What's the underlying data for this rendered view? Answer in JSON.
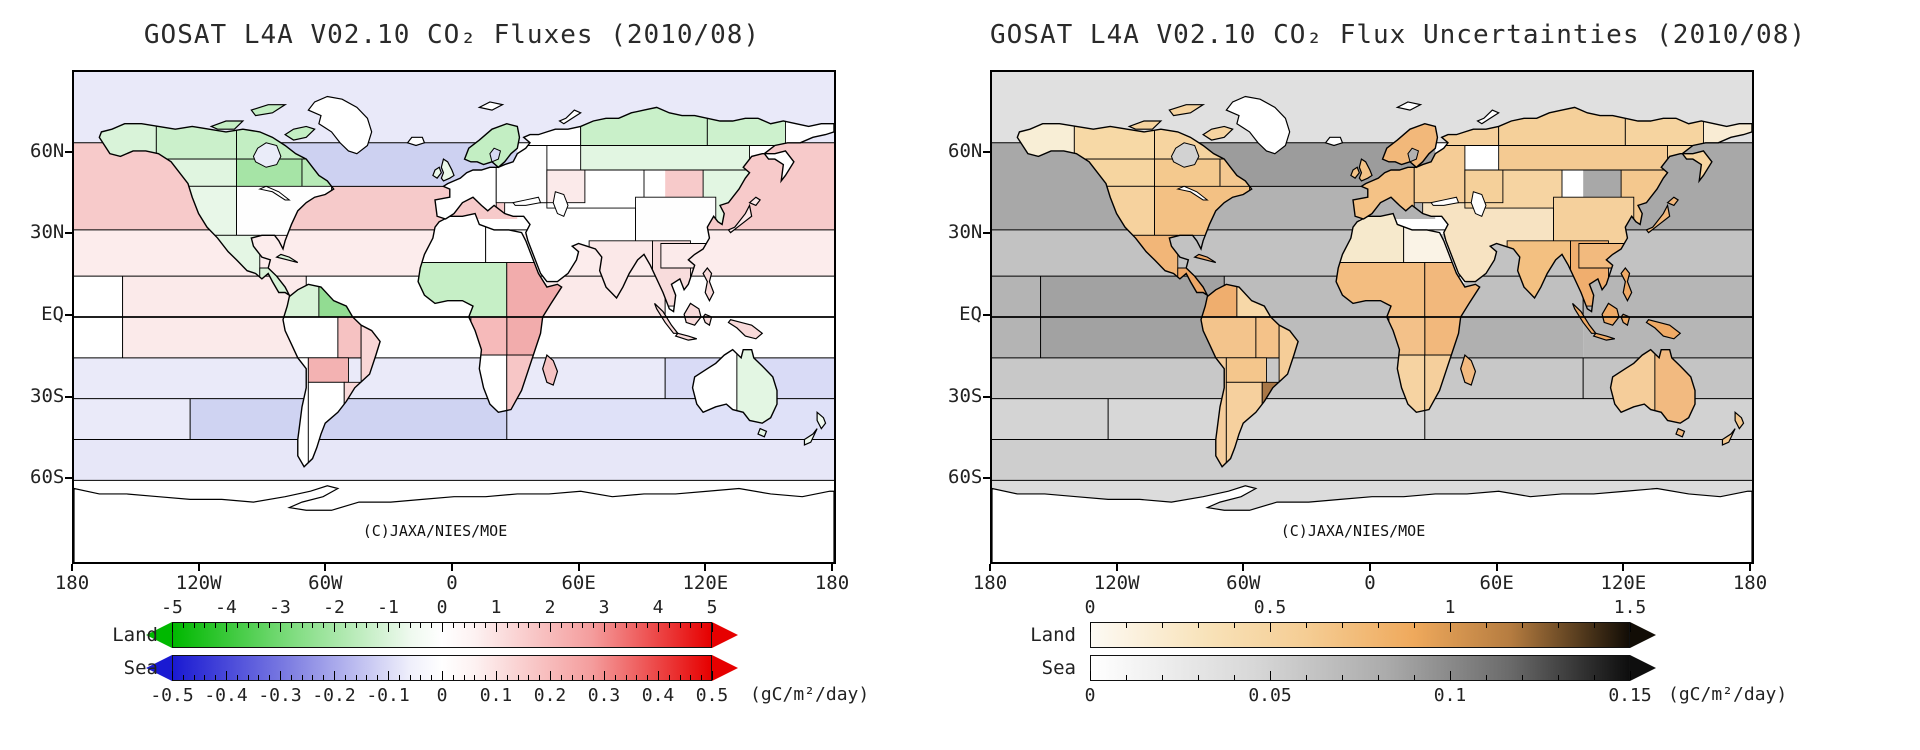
{
  "figure": {
    "background": "#ffffff"
  },
  "chart_data": [
    {
      "type": "choropleth-map",
      "subtype": "surface CO2 flux by region",
      "title": "GOSAT L4A V02.10 CO₂ Fluxes (2010/08)",
      "credit": "(C)JAXA/NIES/MOE",
      "projection": "equirectangular",
      "x_axis_ticks": [
        "180",
        "120W",
        "60W",
        "0",
        "60E",
        "120E",
        "180"
      ],
      "y_axis_ticks": [
        "60N",
        "30N",
        "EQ",
        "30S",
        "60S"
      ],
      "colorbar": {
        "unit": "(gC/m²/day)",
        "land": {
          "label": "Land",
          "min": -5,
          "max": 5,
          "tick_labels": [
            "-5",
            "-4",
            "-3",
            "-2",
            "-1",
            "0",
            "1",
            "2",
            "3",
            "4",
            "5"
          ],
          "tick_values": [
            -5,
            -4,
            -3,
            -2,
            -1,
            0,
            1,
            2,
            3,
            4,
            5
          ],
          "minor_divisions": 5,
          "arrow_left": true,
          "arrow_right": true,
          "stops": [
            [
              "#00b800",
              0
            ],
            [
              "#7edc7e",
              22
            ],
            [
              "#eef9ee",
              44
            ],
            [
              "#ffffff",
              50
            ],
            [
              "#fdf2f2",
              56
            ],
            [
              "#f49c9c",
              78
            ],
            [
              "#e60000",
              100
            ]
          ]
        },
        "sea": {
          "label": "Sea",
          "min": -0.5,
          "max": 0.5,
          "tick_labels": [
            "-0.5",
            "-0.4",
            "-0.3",
            "-0.2",
            "-0.1",
            "0",
            "0.1",
            "0.2",
            "0.3",
            "0.4",
            "0.5"
          ],
          "tick_values": [
            -0.5,
            -0.4,
            -0.3,
            -0.2,
            -0.1,
            0,
            0.1,
            0.2,
            0.3,
            0.4,
            0.5
          ],
          "minor_divisions": 5,
          "arrow_left": true,
          "arrow_right": true,
          "stops": [
            [
              "#1a1ad2",
              0
            ],
            [
              "#8080e2",
              22
            ],
            [
              "#efeffb",
              44
            ],
            [
              "#ffffff",
              50
            ],
            [
              "#fdf2f2",
              56
            ],
            [
              "#f49c9c",
              78
            ],
            [
              "#e60000",
              100
            ]
          ]
        }
      },
      "regions": {
        "na-alaska": {
          "color": "#d9f3d9",
          "value": -0.6
        },
        "na-boreal-west": {
          "color": "#cbf0cb",
          "value": -1.0
        },
        "na-boreal-east": {
          "color": "#c3eec3",
          "value": -1.2
        },
        "na-canada-sw": {
          "color": "#e0f5e0",
          "value": -0.5
        },
        "na-central-canada": {
          "color": "#a6e4a6",
          "value": -1.8
        },
        "na-quebec": {
          "color": "#b7eab7",
          "value": -1.4
        },
        "na-west-us": {
          "color": "#e8f7e8",
          "value": -0.4
        },
        "na-east-us": {
          "color": "#fefefe",
          "value": 0.0
        },
        "na-mexico": {
          "color": "#e4f6e4",
          "value": -0.5
        },
        "na-centam": {
          "color": "#d8f3d8",
          "value": -0.7
        },
        "sa-northwest": {
          "color": "#d8f3d8",
          "value": -0.7
        },
        "sa-northeast": {
          "color": "#92dc92",
          "value": -2.3
        },
        "sa-amazon-west": {
          "color": "#ffffff",
          "value": 0.0
        },
        "sa-brazil-central": {
          "color": "#f6c2c2",
          "value": 1.2
        },
        "sa-brazil-east": {
          "color": "#f9d6d6",
          "value": 0.8
        },
        "sa-chile": {
          "color": "#ffffff",
          "value": 0.0
        },
        "sa-bolivia-paraguay": {
          "color": "#f3b2b2",
          "value": 1.6
        },
        "sa-argentina": {
          "color": "#ffffff",
          "value": 0.0
        },
        "sa-uruguay": {
          "color": "#f9d8d8",
          "value": 0.8
        },
        "af-sahara-west": {
          "color": "#ffffff",
          "value": 0.0
        },
        "af-sahara-east": {
          "color": "#ffffff",
          "value": 0.0
        },
        "af-west-equatorial": {
          "color": "#c6efc6",
          "value": -1.1
        },
        "af-east-equatorial": {
          "color": "#f2acac",
          "value": 1.7
        },
        "af-congo": {
          "color": "#f6baba",
          "value": 1.3
        },
        "af-south-west": {
          "color": "#ffffff",
          "value": 0.0
        },
        "af-south-east": {
          "color": "#f7c6c6",
          "value": 1.1
        },
        "af-madagascar": {
          "color": "#f6c2c2",
          "value": 1.2
        },
        "eu-west": {
          "color": "#ffffff",
          "value": 0.0
        },
        "eu-scandinavia": {
          "color": "#c3eec3",
          "value": -1.2
        },
        "eu-east": {
          "color": "#fefefe",
          "value": 0.0
        },
        "ru-northwest": {
          "color": "#ffffff",
          "value": 0.0
        },
        "ru-siberia-central": {
          "color": "#c9f0c9",
          "value": -1.1
        },
        "ru-siberia-east": {
          "color": "#cdf1cd",
          "value": -1.0
        },
        "ru-fareast-north": {
          "color": "#ffffff",
          "value": 0.0
        },
        "ru-fareast-south": {
          "color": "#ffffff",
          "value": 0.0
        },
        "ru-siberia-south": {
          "color": "#e2f6e2",
          "value": -0.5
        },
        "as-nechina": {
          "color": "#e2f6e2",
          "value": -0.5
        },
        "as-kazakh": {
          "color": "#ffffff",
          "value": 0.0
        },
        "as-caspianreg": {
          "color": "#fbeaea",
          "value": 0.3
        },
        "as-china": {
          "color": "#fefefe",
          "value": 0.0
        },
        "as-schina": {
          "color": "#fbeaea",
          "value": 0.3
        },
        "as-india": {
          "color": "#fbe8e8",
          "value": 0.4
        },
        "as-seasia": {
          "color": "#f8dcdc",
          "value": 0.6
        },
        "as-mideast": {
          "color": "#ffffff",
          "value": 0.0
        },
        "as-japan": {
          "color": "#fbe8e8",
          "value": 0.4
        },
        "as-indonesia": {
          "color": "#f8dada",
          "value": 0.7
        },
        "au-west": {
          "color": "#ffffff",
          "value": 0.0
        },
        "au-east": {
          "color": "#e3f6e3",
          "value": -0.5
        },
        "nz": {
          "color": "#eff9ef",
          "value": -0.2
        },
        "uk": {
          "color": "#eaf8ea",
          "value": -0.3
        },
        "iceland": {
          "color": "#ffffff",
          "value": 0.0
        },
        "greenland": {
          "color": "#ffffff",
          "value": 0.0
        },
        "svalbard": {
          "color": "#ffffff",
          "value": 0.0
        },
        "antarctica": {
          "color": "#ffffff",
          "value": 0.0
        },
        "oc-arctic": {
          "color": "#e9e9f9",
          "value": -0.05
        },
        "oc-npac": {
          "color": "#f7caca",
          "value": 0.15
        },
        "oc-natl-north": {
          "color": "#cdd1f1",
          "value": -0.18
        },
        "oc-natl-mid": {
          "color": "#f6caca",
          "value": 0.15
        },
        "oc-wasia": {
          "color": "#ffffff",
          "value": 0.0
        },
        "oc-subtrop-n": {
          "color": "#fcecec",
          "value": 0.05
        },
        "oc-eq-pac-west": {
          "color": "#ffffff",
          "value": 0.0
        },
        "oc-eq-pac-east": {
          "color": "#fbeaea",
          "value": 0.06
        },
        "oc-eq-atl": {
          "color": "#ffffff",
          "value": 0.0
        },
        "oc-ind-north": {
          "color": "#fbe9e9",
          "value": 0.06
        },
        "oc-ind-eq": {
          "color": "#ffffff",
          "value": 0.0
        },
        "oc-eq-wpac": {
          "color": "#ffffff",
          "value": 0.0
        },
        "oc-s-15-30": {
          "color": "#eaeaf9",
          "value": -0.05
        },
        "oc-s-15-30-westpac": {
          "color": "#d9dbf6",
          "value": -0.1
        },
        "oc-s-30-45-pac": {
          "color": "#eaeaf9",
          "value": -0.05
        },
        "oc-s-30-45-mid": {
          "color": "#cfd3f2",
          "value": -0.15
        },
        "oc-s-30-45-ind": {
          "color": "#dfe1f8",
          "value": -0.08
        },
        "oc-s-45-60": {
          "color": "#e7e7f8",
          "value": -0.05
        },
        "oc-s-60": {
          "color": "#ffffff",
          "value": 0.0
        },
        "w-hudson": {
          "color": "#eaecf9",
          "value": -0.03
        },
        "w-baltic": {
          "color": "#d8daf4",
          "value": -0.1
        },
        "w-med": {
          "color": "#ffffff",
          "value": 0.0
        },
        "w-black": {
          "color": "#ffffff",
          "value": 0.0
        },
        "w-caspian": {
          "color": "#ffffff",
          "value": 0.0
        },
        "w-red": {
          "color": "#ffffff",
          "value": 0.0
        }
      }
    },
    {
      "type": "choropleth-map",
      "subtype": "surface CO2 flux uncertainty by region",
      "title": "GOSAT L4A V02.10 CO₂ Flux Uncertainties (2010/08)",
      "credit": "(C)JAXA/NIES/MOE",
      "projection": "equirectangular",
      "x_axis_ticks": [
        "180",
        "120W",
        "60W",
        "0",
        "60E",
        "120E",
        "180"
      ],
      "y_axis_ticks": [
        "60N",
        "30N",
        "EQ",
        "30S",
        "60S"
      ],
      "colorbar": {
        "unit": "(gC/m²/day)",
        "land": {
          "label": "Land",
          "min": 0,
          "max": 1.5,
          "tick_labels": [
            "0",
            "0.5",
            "1",
            "1.5"
          ],
          "tick_values": [
            0,
            0.5,
            1,
            1.5
          ],
          "minor_divisions": 5,
          "arrow_left": false,
          "arrow_right": true,
          "stops": [
            [
              "#fdfaf4",
              0
            ],
            [
              "#f8e2b8",
              22
            ],
            [
              "#f5cd94",
              40
            ],
            [
              "#efa95c",
              60
            ],
            [
              "#b57c40",
              78
            ],
            [
              "#5c4020",
              90
            ],
            [
              "#120d06",
              100
            ]
          ]
        },
        "sea": {
          "label": "Sea",
          "min": 0,
          "max": 0.15,
          "tick_labels": [
            "0",
            "0.05",
            "0.1",
            "0.15"
          ],
          "tick_values": [
            0,
            0.05,
            0.1,
            0.15
          ],
          "minor_divisions": 5,
          "arrow_left": false,
          "arrow_right": true,
          "stops": [
            [
              "#ffffff",
              0
            ],
            [
              "#d8d8d8",
              30
            ],
            [
              "#ababab",
              55
            ],
            [
              "#6a6a6a",
              78
            ],
            [
              "#0e0e0e",
              100
            ]
          ]
        }
      },
      "regions": {
        "na-alaska": {
          "color": "#f8eed6",
          "value": 0.25
        },
        "na-boreal-west": {
          "color": "#f7d9a6",
          "value": 0.55
        },
        "na-boreal-east": {
          "color": "#f6d4a0",
          "value": 0.58
        },
        "na-canada-sw": {
          "color": "#f6d5a0",
          "value": 0.58
        },
        "na-central-canada": {
          "color": "#f4c98e",
          "value": 0.68
        },
        "na-quebec": {
          "color": "#f4c890",
          "value": 0.68
        },
        "na-west-us": {
          "color": "#f6d29e",
          "value": 0.6
        },
        "na-east-us": {
          "color": "#f3c184",
          "value": 0.75
        },
        "na-mexico": {
          "color": "#f2b678",
          "value": 0.85
        },
        "na-centam": {
          "color": "#efa868",
          "value": 0.95
        },
        "sa-northwest": {
          "color": "#efae6e",
          "value": 0.9
        },
        "sa-northeast": {
          "color": "#f7d8a8",
          "value": 0.52
        },
        "sa-amazon-west": {
          "color": "#f3c48c",
          "value": 0.7
        },
        "sa-brazil-central": {
          "color": "#f4c289",
          "value": 0.73
        },
        "sa-brazil-east": {
          "color": "#f5cd98",
          "value": 0.63
        },
        "sa-chile": {
          "color": "#f5cd9c",
          "value": 0.62
        },
        "sa-bolivia-paraguay": {
          "color": "#f4c68c",
          "value": 0.7
        },
        "sa-argentina": {
          "color": "#f6d09e",
          "value": 0.6
        },
        "sa-uruguay": {
          "color": "#a87747",
          "value": 1.35
        },
        "af-sahara-west": {
          "color": "#f6e9cc",
          "value": 0.3
        },
        "af-sahara-east": {
          "color": "#faf3e6",
          "value": 0.15
        },
        "af-west-equatorial": {
          "color": "#f3bd80",
          "value": 0.8
        },
        "af-east-equatorial": {
          "color": "#f2b87c",
          "value": 0.82
        },
        "af-congo": {
          "color": "#f3c189",
          "value": 0.75
        },
        "af-south-west": {
          "color": "#f6d3a2",
          "value": 0.57
        },
        "af-south-east": {
          "color": "#f5cf9c",
          "value": 0.62
        },
        "af-madagascar": {
          "color": "#f2ba80",
          "value": 0.8
        },
        "eu-west": {
          "color": "#f4c286",
          "value": 0.73
        },
        "eu-scandinavia": {
          "color": "#f2b87a",
          "value": 0.82
        },
        "eu-east": {
          "color": "#f5cc96",
          "value": 0.65
        },
        "ru-northwest": {
          "color": "#f5d09c",
          "value": 0.6
        },
        "ru-siberia-central": {
          "color": "#f5d09a",
          "value": 0.61
        },
        "ru-siberia-east": {
          "color": "#f6d4a0",
          "value": 0.58
        },
        "ru-fareast-north": {
          "color": "#f9ecd4",
          "value": 0.3
        },
        "ru-fareast-south": {
          "color": "#f6d4a0",
          "value": 0.58
        },
        "ru-siberia-south": {
          "color": "#f4ca92",
          "value": 0.67
        },
        "as-nechina": {
          "color": "#f4c88e",
          "value": 0.68
        },
        "as-kazakh": {
          "color": "#f6d4a2",
          "value": 0.57
        },
        "as-caspianreg": {
          "color": "#f5d09a",
          "value": 0.6
        },
        "as-china": {
          "color": "#f5d09c",
          "value": 0.6
        },
        "as-schina": {
          "color": "#f2ba7e",
          "value": 0.8
        },
        "as-india": {
          "color": "#f3c081",
          "value": 0.75
        },
        "as-seasia": {
          "color": "#f0ae6e",
          "value": 0.9
        },
        "as-mideast": {
          "color": "#f7e3c2",
          "value": 0.35
        },
        "as-japan": {
          "color": "#f2b87c",
          "value": 0.82
        },
        "as-indonesia": {
          "color": "#efaa66",
          "value": 0.95
        },
        "au-west": {
          "color": "#f5cd9a",
          "value": 0.62
        },
        "au-east": {
          "color": "#f2ba80",
          "value": 0.8
        },
        "nz": {
          "color": "#f4c88e",
          "value": 0.68
        },
        "uk": {
          "color": "#f4c488",
          "value": 0.72
        },
        "iceland": {
          "color": "#ffffff",
          "value": 0.05
        },
        "greenland": {
          "color": "#ffffff",
          "value": 0.05
        },
        "svalbard": {
          "color": "#ffffff",
          "value": 0.05
        },
        "antarctica": {
          "color": "#ffffff",
          "value": 0.05
        },
        "oc-arctic": {
          "color": "#e0e0e0",
          "value": 0.02
        },
        "oc-npac": {
          "color": "#a8a8a8",
          "value": 0.1
        },
        "oc-natl-north": {
          "color": "#9c9c9c",
          "value": 0.105
        },
        "oc-natl-mid": {
          "color": "#b2b2b2",
          "value": 0.09
        },
        "oc-wasia": {
          "color": "#ffffff",
          "value": 0.0
        },
        "oc-subtrop-n": {
          "color": "#c2c2c2",
          "value": 0.075
        },
        "oc-eq-pac-west": {
          "color": "#b4b4b4",
          "value": 0.085
        },
        "oc-eq-pac-east": {
          "color": "#a2a2a2",
          "value": 0.1
        },
        "oc-eq-atl": {
          "color": "#bcbcbc",
          "value": 0.08
        },
        "oc-ind-north": {
          "color": "#c0c0c0",
          "value": 0.075
        },
        "oc-ind-eq": {
          "color": "#b0b0b0",
          "value": 0.088
        },
        "oc-eq-wpac": {
          "color": "#b6b6b6",
          "value": 0.083
        },
        "oc-s-15-30": {
          "color": "#c8c8c8",
          "value": 0.07
        },
        "oc-s-15-30-westpac": {
          "color": "#c4c4c4",
          "value": 0.072
        },
        "oc-s-30-45-pac": {
          "color": "#d4d4d4",
          "value": 0.052
        },
        "oc-s-30-45-mid": {
          "color": "#d7d7d7",
          "value": 0.05
        },
        "oc-s-30-45-ind": {
          "color": "#d2d2d2",
          "value": 0.055
        },
        "oc-s-45-60": {
          "color": "#cecece",
          "value": 0.058
        },
        "oc-s-60": {
          "color": "#dcdcdc",
          "value": 0.04
        },
        "w-hudson": {
          "color": "#d2d2d2",
          "value": 0.05
        },
        "w-baltic": {
          "color": "#b2b2b2",
          "value": 0.09
        },
        "w-med": {
          "color": "#ffffff",
          "value": 0.0
        },
        "w-black": {
          "color": "#ffffff",
          "value": 0.0
        },
        "w-caspian": {
          "color": "#ffffff",
          "value": 0.0
        },
        "w-red": {
          "color": "#ffffff",
          "value": 0.0
        }
      }
    }
  ]
}
